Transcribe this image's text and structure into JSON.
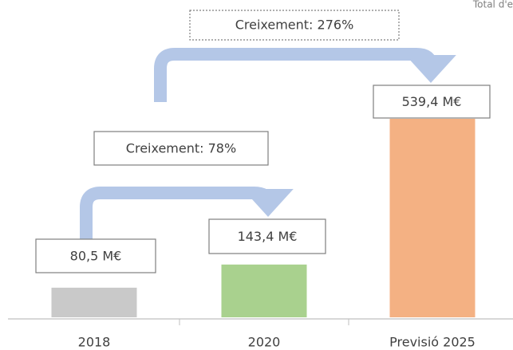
{
  "chart_data": {
    "type": "bar",
    "title": "Total d'e",
    "categories": [
      "2018",
      "2020",
      "Previsió 2025"
    ],
    "values": [
      80.5,
      143.4,
      539.4
    ],
    "value_labels": [
      "80,5 M€",
      "143,4 M€",
      "539,4 M€"
    ],
    "colors": [
      "#c9c9c9",
      "#a9d18e",
      "#f4b183"
    ],
    "annotations": [
      "Creixement: 78%",
      "Creixement: 276%"
    ]
  }
}
